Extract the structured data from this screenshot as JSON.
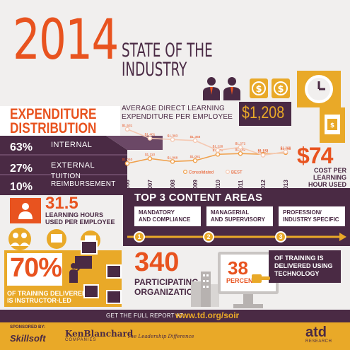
{
  "header": {
    "year": "2014",
    "title": "STATE OF THE INDUSTRY"
  },
  "expenditure": {
    "title_line1": "EXPENDITURE",
    "title_line2": "DISTRIBUTION",
    "rows": [
      {
        "pct": "63%",
        "label": "INTERNAL"
      },
      {
        "pct": "27%",
        "label": "EXTERNAL"
      },
      {
        "pct": "10%",
        "label_line1": "TUITION",
        "label_line2": "REIMBURSEMENT"
      }
    ]
  },
  "chart_data": {
    "type": "line",
    "title": "AVERAGE DIRECT LEARNING EXPENDITURE PER EMPLOYEE",
    "categories": [
      "2006",
      "2007",
      "2008",
      "2009",
      "2010",
      "2011",
      "2012",
      "2013"
    ],
    "series": [
      {
        "name": "Consolidated",
        "values": [
          1040,
          1110,
          1068,
          1081,
          1171,
          1182,
          1172,
          1195
        ],
        "labels": [
          "$1,040",
          "$1,110",
          "$1,068",
          "$1,081",
          "$1,171",
          "$1,182",
          "$1,172",
          "$1,195"
        ],
        "color": "#f0a04b"
      },
      {
        "name": "BEST",
        "values": [
          1531,
          1401,
          1383,
          1368,
          1228,
          1272,
          1158,
          1208
        ],
        "labels": [
          "$1,531",
          "$1,401",
          "$1,383",
          "$1,368",
          "$1,228",
          "$1,272",
          "$1,158",
          "$1,208"
        ],
        "color": "#f5c9b3"
      }
    ],
    "legend_position": "bottom",
    "ylim": [
      950,
      1600
    ]
  },
  "highlight_value": "$1,208",
  "cost_per_hour": {
    "value": "$74",
    "line1": "COST PER",
    "line2": "LEARNING",
    "line3": "HOUR USED"
  },
  "learning_hours": {
    "value": "31.5",
    "line1": "LEARNING HOURS",
    "line2": "USED PER EMPLOYEE"
  },
  "content_areas": {
    "title": "TOP 3 CONTENT AREAS",
    "items": [
      {
        "num": "1",
        "line1": "MANDATORY",
        "line2": "AND COMPLIANCE"
      },
      {
        "num": "2",
        "line1": "MANAGERIAL",
        "line2": "AND SUPERVISORY"
      },
      {
        "num": "3",
        "line1": "PROFESSION/",
        "line2": "INDUSTRY SPECIFIC"
      }
    ]
  },
  "instructor_led": {
    "value": "70%",
    "line1": "OF TRAINING DELIVERED",
    "line2": "IS INSTRUCTOR-LED"
  },
  "organizations": {
    "value": "340",
    "line1": "PARTICIPATING",
    "line2": "ORGANIZATIONS"
  },
  "technology": {
    "value": "38",
    "unit": "PERCENT",
    "line1": "OF TRAINING IS",
    "line2": "DELIVERED USING",
    "line3": "TECHNOLOGY"
  },
  "footer": {
    "report_prefix": "GET THE FULL REPORT AT:",
    "report_url": "www.td.org/soir",
    "sponsored_by": "SPONSORED BY:",
    "sponsor1": "Skillsoft",
    "sponsor2_name": "KenBlanchard",
    "sponsor2_sub": "COMPANIES",
    "sponsor2_tagline": "The Leadership Difference",
    "sponsor3": "atd",
    "sponsor3_sub": "RESEARCH"
  },
  "icons": {
    "people": "business-people-icon",
    "coins": "dollar-coin-icon",
    "clock": "clock-icon",
    "money": "cash-icon",
    "person_board": "person-at-board-icon",
    "building": "building-icon",
    "monitor": "computer-monitor-icon",
    "pointing_hand": "pointing-hand-icon"
  },
  "colors": {
    "orange": "#e8531f",
    "purple": "#4a2a44",
    "light_purple": "#6b4866",
    "light_orange": "#f0a04b",
    "gold": "#e9a928",
    "gray": "#d9d6d4"
  }
}
